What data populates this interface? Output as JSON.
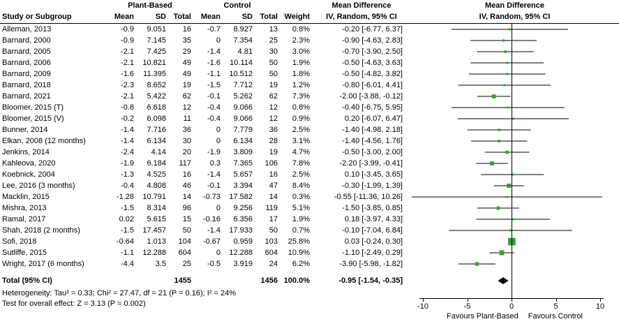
{
  "header": {
    "group1": "Plant-Based",
    "group2": "Control",
    "md": "Mean Difference",
    "ci_method": "IV, Random, 95% CI",
    "study": "Study or Subgroup",
    "mean": "Mean",
    "sd": "SD",
    "total": "Total",
    "weight": "Weight"
  },
  "footer": {
    "heterogeneity": "Heterogeneity: Tau² = 0.33; Chi² = 27.47, df = 21 (P = 0.16); I² = 24%",
    "overall_effect": "Test for overall effect: Z = 3.13 (P = 0.002)"
  },
  "axis": {
    "ticks": [
      "-10",
      "-5",
      "0",
      "5",
      "10"
    ],
    "tick_values": [
      -10,
      -5,
      0,
      5,
      10
    ],
    "favours_left": "Favours Plant-Based",
    "favours_right": "Favours Control"
  },
  "chart_data": {
    "type": "scatter",
    "subtype": "forest_plot",
    "title": "Mean Difference, IV, Random, 95% CI",
    "effect_measure": "Mean Difference",
    "model": "IV, Random",
    "xlim": [
      -10,
      10
    ],
    "x_ticks": [
      -10,
      -5,
      0,
      5,
      10
    ],
    "colors": {
      "marker": "#3a9d3a",
      "ci_line": "#000000",
      "diamond": "#000000",
      "zero_line": "#000000"
    },
    "studies": [
      {
        "name": "Alleman, 2013",
        "mean1": "-0.9",
        "sd1": "9.051",
        "n1": "16",
        "mean2": "-0.7",
        "sd2": "8.927",
        "n2": "13",
        "weight": "0.8%",
        "ci_text": "-0.20 [-6.77, 6.37]",
        "md": -0.2,
        "lo": -6.77,
        "hi": 6.37,
        "w": 0.8
      },
      {
        "name": "Barnard, 2000",
        "mean1": "-0.9",
        "sd1": "7.145",
        "n1": "35",
        "mean2": "0",
        "sd2": "7.354",
        "n2": "25",
        "weight": "2.3%",
        "ci_text": "-0.90 [-4.63, 2.83]",
        "md": -0.9,
        "lo": -4.63,
        "hi": 2.83,
        "w": 2.3
      },
      {
        "name": "Barnard, 2005",
        "mean1": "-2.1",
        "sd1": "7.425",
        "n1": "29",
        "mean2": "-1.4",
        "sd2": "4.81",
        "n2": "30",
        "weight": "3.0%",
        "ci_text": "-0.70 [-3.90, 2.50]",
        "md": -0.7,
        "lo": -3.9,
        "hi": 2.5,
        "w": 3.0
      },
      {
        "name": "Barnard, 2006",
        "mean1": "-2.1",
        "sd1": "10.821",
        "n1": "49",
        "mean2": "-1.6",
        "sd2": "10.114",
        "n2": "50",
        "weight": "1.9%",
        "ci_text": "-0.50 [-4.63, 3.63]",
        "md": -0.5,
        "lo": -4.63,
        "hi": 3.63,
        "w": 1.9
      },
      {
        "name": "Barnard, 2009",
        "mean1": "-1.6",
        "sd1": "11.395",
        "n1": "49",
        "mean2": "-1.1",
        "sd2": "10.512",
        "n2": "50",
        "weight": "1.8%",
        "ci_text": "-0.50 [-4.82, 3.82]",
        "md": -0.5,
        "lo": -4.82,
        "hi": 3.82,
        "w": 1.8
      },
      {
        "name": "Barnard, 2018",
        "mean1": "-2.3",
        "sd1": "8.652",
        "n1": "19",
        "mean2": "-1.5",
        "sd2": "7.712",
        "n2": "19",
        "weight": "1.2%",
        "ci_text": "-0.80 [-6.01, 4.41]",
        "md": -0.8,
        "lo": -6.01,
        "hi": 4.41,
        "w": 1.2
      },
      {
        "name": "Barnard, 2021",
        "mean1": "-2.1",
        "sd1": "5.422",
        "n1": "62",
        "mean2": "-0.1",
        "sd2": "5.262",
        "n2": "62",
        "weight": "7.3%",
        "ci_text": "-2.00 [-3.88, -0.12]",
        "md": -2.0,
        "lo": -3.88,
        "hi": -0.12,
        "w": 7.3
      },
      {
        "name": "Bloomer, 2015 (T)",
        "mean1": "-0.8",
        "sd1": "6.618",
        "n1": "12",
        "mean2": "-0.4",
        "sd2": "9.066",
        "n2": "12",
        "weight": "0.8%",
        "ci_text": "-0.40 [-6.75, 5.95]",
        "md": -0.4,
        "lo": -6.75,
        "hi": 5.95,
        "w": 0.8
      },
      {
        "name": "Bloomer, 2015 (V)",
        "mean1": "-0.2",
        "sd1": "6.098",
        "n1": "11",
        "mean2": "-0.4",
        "sd2": "9.066",
        "n2": "12",
        "weight": "0.9%",
        "ci_text": "0.20 [-6.07, 6.47]",
        "md": 0.2,
        "lo": -6.07,
        "hi": 6.47,
        "w": 0.9
      },
      {
        "name": "Bunner, 2014",
        "mean1": "-1.4",
        "sd1": "7.716",
        "n1": "36",
        "mean2": "0",
        "sd2": "7.779",
        "n2": "36",
        "weight": "2.5%",
        "ci_text": "-1.40 [-4.98, 2.18]",
        "md": -1.4,
        "lo": -4.98,
        "hi": 2.18,
        "w": 2.5
      },
      {
        "name": "Elkan, 2008 (12 months)",
        "mean1": "-1.4",
        "sd1": "6.134",
        "n1": "30",
        "mean2": "0",
        "sd2": "6.134",
        "n2": "28",
        "weight": "3.1%",
        "ci_text": "-1.40 [-4.56, 1.76]",
        "md": -1.4,
        "lo": -4.56,
        "hi": 1.76,
        "w": 3.1
      },
      {
        "name": "Jenkins, 2014",
        "mean1": "-2.4",
        "sd1": "4.14",
        "n1": "20",
        "mean2": "-1.9",
        "sd2": "3.809",
        "n2": "19",
        "weight": "4.7%",
        "ci_text": "-0.50 [-3.00, 2.00]",
        "md": -0.5,
        "lo": -3.0,
        "hi": 2.0,
        "w": 4.7
      },
      {
        "name": "Kahleova, 2020",
        "mean1": "-1.9",
        "sd1": "6.184",
        "n1": "117",
        "mean2": "0.3",
        "sd2": "7.365",
        "n2": "106",
        "weight": "7.8%",
        "ci_text": "-2.20 [-3.99, -0.41]",
        "md": -2.2,
        "lo": -3.99,
        "hi": -0.41,
        "w": 7.8
      },
      {
        "name": "Koebnick, 2004",
        "mean1": "-1.3",
        "sd1": "4.525",
        "n1": "16",
        "mean2": "-1.4",
        "sd2": "5.657",
        "n2": "16",
        "weight": "2.5%",
        "ci_text": "0.10 [-3.45, 3.65]",
        "md": 0.1,
        "lo": -3.45,
        "hi": 3.65,
        "w": 2.5
      },
      {
        "name": "Lee, 2016 (3 months)",
        "mean1": "-0.4",
        "sd1": "4.808",
        "n1": "46",
        "mean2": "-0.1",
        "sd2": "3.394",
        "n2": "47",
        "weight": "8.4%",
        "ci_text": "-0.30 [-1.99, 1.39]",
        "md": -0.3,
        "lo": -1.99,
        "hi": 1.39,
        "w": 8.4
      },
      {
        "name": "Macklin, 2015",
        "mean1": "-1.28",
        "sd1": "10.791",
        "n1": "14",
        "mean2": "-0.73",
        "sd2": "17.582",
        "n2": "14",
        "weight": "0.3%",
        "ci_text": "-0.55 [-11.36, 10.26]",
        "md": -0.55,
        "lo": -11.36,
        "hi": 10.26,
        "w": 0.3
      },
      {
        "name": "Mishra, 2013",
        "mean1": "-1.5",
        "sd1": "8.314",
        "n1": "96",
        "mean2": "0",
        "sd2": "9.256",
        "n2": "119",
        "weight": "5.1%",
        "ci_text": "-1.50 [-3.85, 0.85]",
        "md": -1.5,
        "lo": -3.85,
        "hi": 0.85,
        "w": 5.1
      },
      {
        "name": "Ramal, 2017",
        "mean1": "0.02",
        "sd1": "5.615",
        "n1": "15",
        "mean2": "-0.16",
        "sd2": "6.356",
        "n2": "17",
        "weight": "1.9%",
        "ci_text": "0.18 [-3.97, 4.33]",
        "md": 0.18,
        "lo": -3.97,
        "hi": 4.33,
        "w": 1.9
      },
      {
        "name": "Shah, 2018 (2 months)",
        "mean1": "-1.5",
        "sd1": "17.457",
        "n1": "50",
        "mean2": "-1.4",
        "sd2": "17.933",
        "n2": "50",
        "weight": "0.7%",
        "ci_text": "-0.10 [-7.04, 6.84]",
        "md": -0.1,
        "lo": -7.04,
        "hi": 6.84,
        "w": 0.7
      },
      {
        "name": "Sofi, 2018",
        "mean1": "-0.64",
        "sd1": "1.013",
        "n1": "104",
        "mean2": "-0.67",
        "sd2": "0.959",
        "n2": "103",
        "weight": "25.8%",
        "ci_text": "0.03 [-0.24, 0.30]",
        "md": 0.03,
        "lo": -0.24,
        "hi": 0.3,
        "w": 25.8
      },
      {
        "name": "Sutliffe, 2015",
        "mean1": "-1.1",
        "sd1": "12.288",
        "n1": "604",
        "mean2": "0",
        "sd2": "12.288",
        "n2": "604",
        "weight": "10.9%",
        "ci_text": "-1.10 [-2.49, 0.29]",
        "md": -1.1,
        "lo": -2.49,
        "hi": 0.29,
        "w": 10.9
      },
      {
        "name": "Wright, 2017 (6 months)",
        "mean1": "-4.4",
        "sd1": "3.5",
        "n1": "25",
        "mean2": "-0.5",
        "sd2": "3.919",
        "n2": "24",
        "weight": "6.2%",
        "ci_text": "-3.90 [-5.98, -1.82]",
        "md": -3.9,
        "lo": -5.98,
        "hi": -1.82,
        "w": 6.2
      }
    ],
    "total": {
      "label": "Total (95% CI)",
      "n1": "1455",
      "n2": "1456",
      "weight": "100.0%",
      "ci_text": "-0.95 [-1.54, -0.35]",
      "md": -0.95,
      "lo": -1.54,
      "hi": -0.35
    }
  }
}
